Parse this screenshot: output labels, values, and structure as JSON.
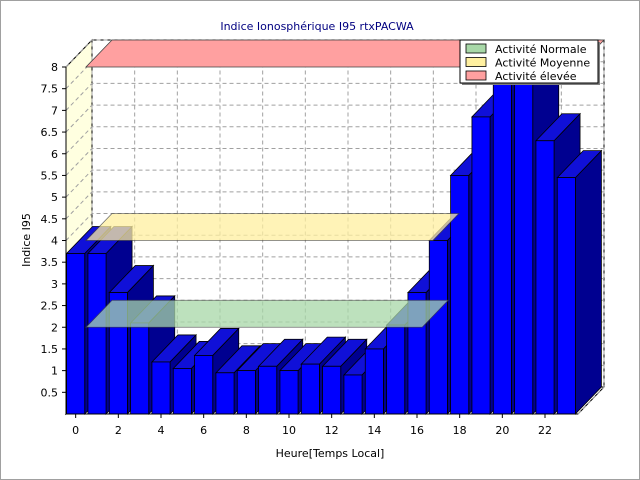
{
  "chart_data": {
    "type": "bar",
    "title": "Indice Ionosphérique I95  rtxPACWA",
    "xlabel": "Heure[Temps Local]",
    "ylabel": "Indice I95",
    "x_tick_labels": [
      "0",
      "2",
      "4",
      "6",
      "8",
      "10",
      "12",
      "14",
      "16",
      "18",
      "20",
      "22"
    ],
    "y_tick_labels": [
      "0.5",
      "1",
      "1.5",
      "2",
      "2.5",
      "3",
      "3.5",
      "4",
      "4.5",
      "5",
      "5.5",
      "6",
      "6.5",
      "7",
      "7.5",
      "8"
    ],
    "ylim": [
      0,
      8
    ],
    "xlim": [
      0,
      24
    ],
    "grid": true,
    "three_d": true,
    "legend_position": "top-right",
    "x": [
      0,
      1,
      2,
      3,
      4,
      5,
      6,
      7,
      8,
      9,
      10,
      11,
      12,
      13,
      14,
      15,
      16,
      17,
      18,
      19,
      20,
      21,
      22,
      23
    ],
    "values": [
      3.7,
      3.7,
      2.8,
      2.1,
      1.2,
      1.05,
      1.35,
      0.95,
      1.0,
      1.1,
      1.0,
      1.15,
      1.1,
      0.9,
      1.5,
      2.05,
      2.8,
      4.0,
      5.5,
      6.85,
      7.75,
      7.7,
      6.3,
      5.45
    ],
    "bar_color": "#0000ff",
    "activity_bands": [
      {
        "name": "Activité Normale",
        "value": 2.0,
        "color": "#a8d8a8"
      },
      {
        "name": "Activité Moyenne",
        "value": 4.0,
        "color": "#fff0a0"
      },
      {
        "name": "Activité élevée",
        "value": 8.0,
        "color": "#ffa0a0"
      }
    ]
  }
}
